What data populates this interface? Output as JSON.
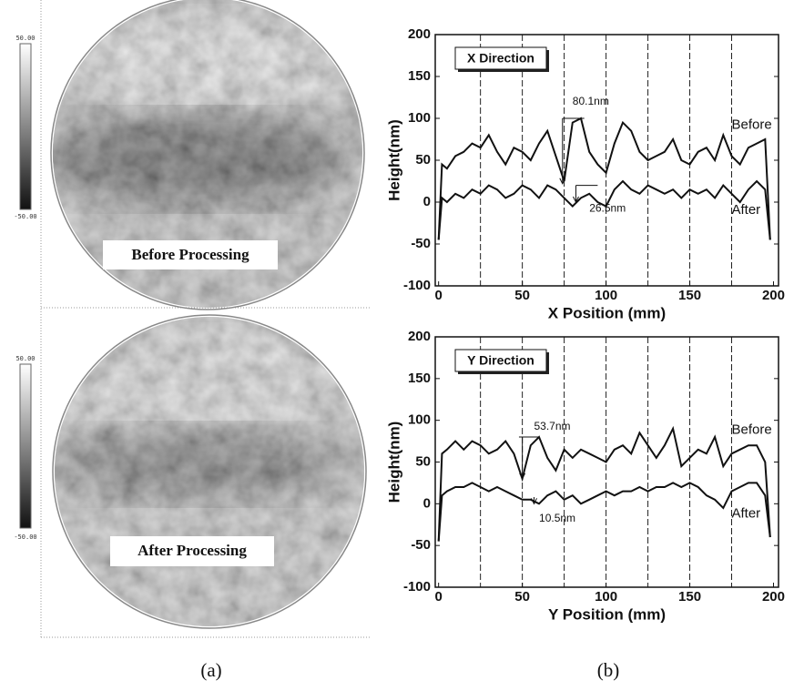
{
  "maps": [
    {
      "caption": "Before Processing",
      "colorbar_max": "50.00",
      "colorbar_min": "-50.00"
    },
    {
      "caption": "After Processing",
      "colorbar_max": "50.00",
      "colorbar_min": "-50.00"
    }
  ],
  "captions": [
    "(a)",
    "(b)"
  ],
  "chart_data": [
    {
      "type": "line",
      "title": "X Direction",
      "x_label": "X Position (mm)",
      "y_label": "Height(nm)",
      "x": [
        0,
        2,
        5,
        10,
        15,
        20,
        25,
        30,
        35,
        40,
        45,
        50,
        55,
        60,
        65,
        70,
        75,
        80,
        85,
        90,
        95,
        100,
        105,
        110,
        115,
        120,
        125,
        130,
        135,
        140,
        145,
        150,
        155,
        160,
        165,
        170,
        175,
        180,
        185,
        190,
        195,
        198
      ],
      "series": [
        {
          "name": "Before",
          "color": "#111111",
          "values": [
            -45,
            45,
            40,
            55,
            60,
            70,
            65,
            80,
            60,
            45,
            65,
            60,
            50,
            70,
            85,
            55,
            25,
            95,
            100,
            60,
            45,
            35,
            70,
            95,
            85,
            60,
            50,
            55,
            60,
            75,
            50,
            45,
            60,
            65,
            50,
            80,
            55,
            45,
            65,
            70,
            75,
            -45
          ]
        },
        {
          "name": "After",
          "color": "#111111",
          "values": [
            -45,
            5,
            0,
            10,
            5,
            15,
            10,
            20,
            15,
            5,
            10,
            20,
            15,
            5,
            20,
            15,
            5,
            -5,
            5,
            10,
            0,
            -5,
            15,
            25,
            15,
            10,
            20,
            15,
            10,
            15,
            5,
            15,
            10,
            15,
            5,
            20,
            10,
            0,
            15,
            25,
            15,
            -45
          ]
        }
      ],
      "annotations": [
        "80.1nm",
        "26.5nm"
      ],
      "xlim": [
        -2,
        203
      ],
      "ylim": [
        -100,
        200
      ],
      "xticks": [
        0,
        50,
        100,
        150,
        200
      ],
      "yticks": [
        -100,
        -50,
        0,
        50,
        100,
        150,
        200
      ],
      "grid_x": [
        25,
        50,
        75,
        100,
        125,
        150,
        175
      ]
    },
    {
      "type": "line",
      "title": "Y Direction",
      "x_label": "Y Position (mm)",
      "y_label": "Height(nm)",
      "x": [
        0,
        2,
        5,
        10,
        15,
        20,
        25,
        30,
        35,
        40,
        45,
        50,
        55,
        60,
        65,
        70,
        75,
        80,
        85,
        90,
        95,
        100,
        105,
        110,
        115,
        120,
        125,
        130,
        135,
        140,
        145,
        150,
        155,
        160,
        165,
        170,
        175,
        180,
        185,
        190,
        195,
        198
      ],
      "series": [
        {
          "name": "Before",
          "color": "#111111",
          "values": [
            -45,
            60,
            65,
            75,
            65,
            75,
            70,
            60,
            65,
            75,
            60,
            30,
            70,
            80,
            55,
            40,
            65,
            55,
            65,
            60,
            55,
            50,
            65,
            70,
            60,
            85,
            70,
            55,
            70,
            90,
            45,
            55,
            65,
            60,
            80,
            45,
            60,
            65,
            70,
            70,
            50,
            -40
          ]
        },
        {
          "name": "After",
          "color": "#111111",
          "values": [
            -45,
            10,
            15,
            20,
            20,
            25,
            20,
            15,
            20,
            15,
            10,
            5,
            5,
            0,
            10,
            15,
            5,
            10,
            0,
            5,
            10,
            15,
            10,
            15,
            15,
            20,
            15,
            20,
            20,
            25,
            20,
            25,
            20,
            10,
            5,
            -5,
            15,
            20,
            25,
            25,
            10,
            -40
          ]
        }
      ],
      "annotations": [
        "53.7nm",
        "10.5nm"
      ],
      "xlim": [
        -2,
        203
      ],
      "ylim": [
        -100,
        200
      ],
      "xticks": [
        0,
        50,
        100,
        150,
        200
      ],
      "yticks": [
        -100,
        -50,
        0,
        50,
        100,
        150,
        200
      ],
      "grid_x": [
        25,
        50,
        75,
        100,
        125,
        150,
        175
      ]
    }
  ]
}
